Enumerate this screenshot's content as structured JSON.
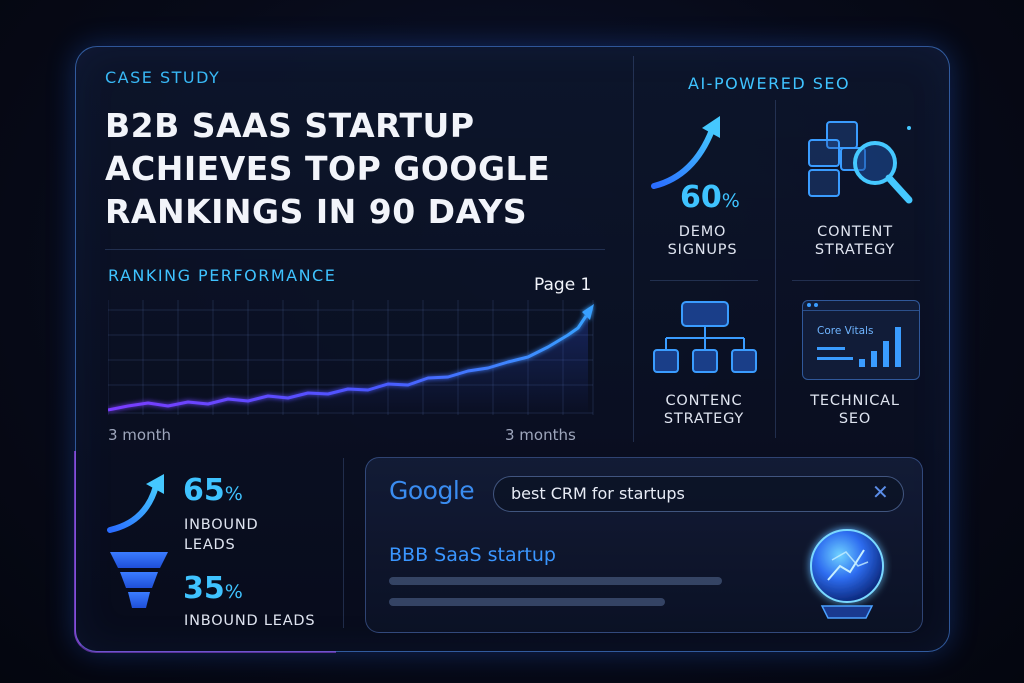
{
  "case_study": {
    "eyebrow": "CASE STUDY",
    "headline_lines": [
      "B2B SAAS STARTUP",
      "ACHIEVES TOP GOOGLE",
      "RANKINGS IN 90 DAYS"
    ]
  },
  "ranking": {
    "label": "RANKING PERFORMANCE",
    "peak_label": "Page 1",
    "x_start_label": "3 month",
    "x_end_label": "3 months"
  },
  "ai_seo": {
    "title": "AI-POWERED SEO",
    "tiles": [
      {
        "value": "60",
        "unit": "%",
        "label_lines": [
          "DEMO",
          "SIGNUPS"
        ],
        "icon": "trend-arrow-icon"
      },
      {
        "label_lines": [
          "CONTENT",
          "STRATEGY"
        ],
        "icon": "magnifier-blocks-icon"
      },
      {
        "label_lines": [
          "CONTENC",
          "STRATEGY"
        ],
        "icon": "hierarchy-icon"
      },
      {
        "label_lines": [
          "TECHNICAL",
          "SEO"
        ],
        "icon": "core-vitals-dashboard-icon",
        "inner_text": "Core Vitals"
      }
    ]
  },
  "metrics": [
    {
      "value": "65",
      "unit": "%",
      "label_lines": [
        "INBOUND",
        "LEADS"
      ],
      "icon": "trend-arrow-icon"
    },
    {
      "value": "35",
      "unit": "%",
      "label_lines": [
        "INBOUND LEADS"
      ],
      "icon": "funnel-icon"
    }
  ],
  "search": {
    "engine_label": "Google",
    "query": "best CRM for startups",
    "clear_icon": "close-icon",
    "result_title": "BBB SaaS startup",
    "orb_icon": "crystal-ball-icon"
  },
  "colors": {
    "accent_cyan": "#3fc3ff",
    "accent_blue": "#3a8cf0",
    "accent_purple": "#7b3cff",
    "card_border": "#4f96ff"
  }
}
